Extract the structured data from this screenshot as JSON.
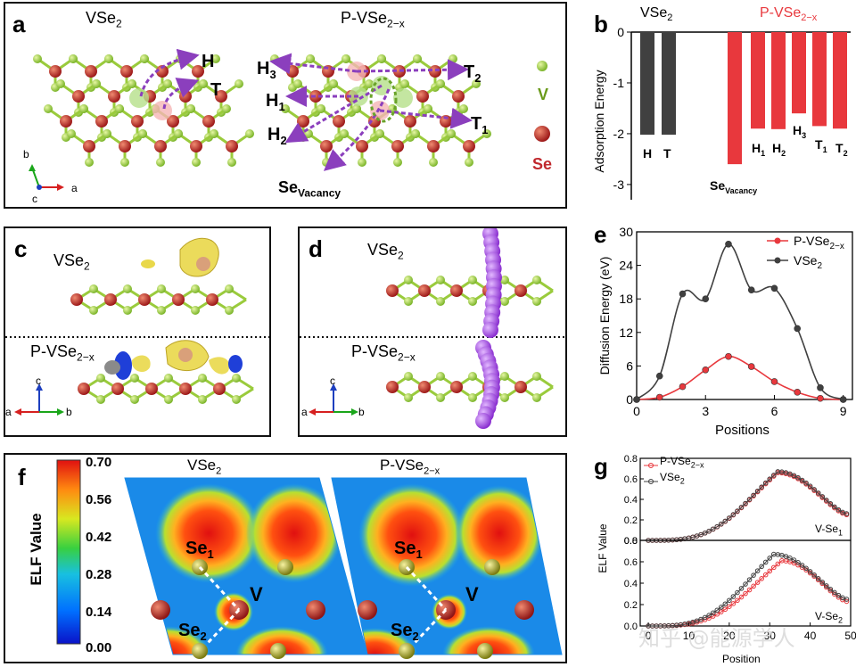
{
  "panel_a": {
    "label": "a",
    "left_title": "VSe",
    "left_title_sub": "2",
    "right_title": "P-VSe",
    "right_title_sub": "2−x",
    "sites_left": [
      "H",
      "T"
    ],
    "sites_right": [
      "H",
      "3",
      "T",
      "2",
      "H",
      "1",
      "T",
      "1",
      "H",
      "2"
    ],
    "vacancy_main": "Se",
    "vacancy_sub": "Vacancy",
    "legend_v": "V",
    "legend_se": "Se",
    "axis_b": "b",
    "axis_c": "c",
    "axis_a": "a"
  },
  "panel_b": {
    "label": "b",
    "group1": "VSe",
    "group1_sub": "2",
    "group2": "P-VSe",
    "group2_sub": "2−x",
    "bar_labels": [
      "H",
      "T",
      "Se",
      "Vacancy",
      "H",
      "1",
      "H",
      "2",
      "H",
      "3",
      "T",
      "1",
      "T",
      "2"
    ]
  },
  "panel_c": {
    "label": "c",
    "top_title": "VSe",
    "top_sub": "2",
    "bottom_title": "P-VSe",
    "bottom_sub": "2−x",
    "axis": [
      "c",
      "a",
      "b"
    ]
  },
  "panel_d": {
    "label": "d",
    "top_title": "VSe",
    "top_sub": "2",
    "bottom_title": "P-VSe",
    "bottom_sub": "2−x",
    "axis": [
      "c",
      "a",
      "b"
    ]
  },
  "panel_e": {
    "label": "e",
    "legend_red": "P-VSe",
    "legend_red_sub": "2−x",
    "legend_black": "VSe",
    "legend_black_sub": "2"
  },
  "panel_f": {
    "label": "f",
    "colorbar_title": "ELF Value",
    "colorbar_ticks": [
      "0.70",
      "0.56",
      "0.42",
      "0.28",
      "0.14",
      "0.00"
    ],
    "left_title": "VSe",
    "left_title_sub": "2",
    "right_title": "P-VSe",
    "right_title_sub": "2−x",
    "atom_labels": [
      "Se",
      "1",
      "Se",
      "2",
      "V"
    ]
  },
  "panel_g": {
    "label": "g",
    "legend_red": "P-VSe",
    "legend_red_sub": "2−x",
    "legend_black": "VSe",
    "legend_black_sub": "2",
    "top_tag": "V-Se",
    "top_tag_sub": "1",
    "bottom_tag": "V-Se",
    "bottom_tag_sub": "2"
  },
  "watermark": "知乎 @能源学人",
  "colors": {
    "red": "#e8383d",
    "dark": "#404040",
    "green": "#8cc63f",
    "se": "#c0282d",
    "arrow": "#8b3fbd"
  },
  "chart_data": [
    {
      "type": "bar",
      "panel": "b",
      "title": "",
      "xlabel": "",
      "ylabel": "Adsorption Energy",
      "ylim": [
        -3.3,
        0
      ],
      "yticks": [
        "0",
        "-1",
        "-2",
        "-3"
      ],
      "categories": [
        "H",
        "T",
        "SeVacancy",
        "H1",
        "H2",
        "H3",
        "T1",
        "T2"
      ],
      "groups": [
        "VSe2",
        "VSe2",
        "P-VSe2−x",
        "P-VSe2−x",
        "P-VSe2−x",
        "P-VSe2−x",
        "P-VSe2−x",
        "P-VSe2−x"
      ],
      "values": [
        -2.02,
        -2.02,
        -2.6,
        -1.9,
        -1.91,
        -1.6,
        -1.85,
        -1.9
      ]
    },
    {
      "type": "line",
      "panel": "e",
      "xlabel": "Positions",
      "ylabel": "Diffusion Energy (eV)",
      "xlim": [
        0,
        9.4
      ],
      "ylim": [
        0,
        30
      ],
      "xticks": [
        "0",
        "3",
        "6",
        "9"
      ],
      "yticks": [
        "0",
        "6",
        "12",
        "18",
        "24",
        "30"
      ],
      "series": [
        {
          "name": "P-VSe2−x",
          "x": [
            0,
            1,
            2,
            3,
            4,
            5,
            6,
            7,
            8,
            9
          ],
          "values": [
            0,
            0.4,
            2.3,
            5.3,
            7.7,
            5.9,
            3.2,
            1.3,
            0.2,
            0
          ]
        },
        {
          "name": "VSe2",
          "x": [
            0,
            1,
            2,
            3,
            4,
            5,
            6,
            7,
            8,
            9
          ],
          "values": [
            0,
            4.2,
            18.9,
            18,
            27.8,
            19.6,
            19.9,
            12.7,
            2.1,
            0
          ]
        }
      ]
    },
    {
      "type": "line",
      "panel": "g",
      "xlabel": "Position",
      "ylabel": "ELF Value",
      "xlim": [
        -2,
        50
      ],
      "ylim": [
        0,
        0.8
      ],
      "xticks": [
        "0",
        "10",
        "20",
        "30",
        "40",
        "50"
      ],
      "yticks": [
        "0.0",
        "0.2",
        "0.4",
        "0.6",
        "0.8"
      ],
      "subplots": [
        {
          "name": "V-Se1",
          "series": [
            {
              "name": "P-VSe2−x",
              "peak_x": 32,
              "peak": 0.66,
              "end": 0.25
            },
            {
              "name": "VSe2",
              "peak_x": 32,
              "peak": 0.67,
              "end": 0.26
            }
          ]
        },
        {
          "name": "V-Se2",
          "series": [
            {
              "name": "P-VSe2−x",
              "peak_x": 33,
              "peak": 0.61,
              "end": 0.23
            },
            {
              "name": "VSe2",
              "peak_x": 31,
              "peak": 0.67,
              "end": 0.25
            }
          ]
        }
      ]
    }
  ]
}
